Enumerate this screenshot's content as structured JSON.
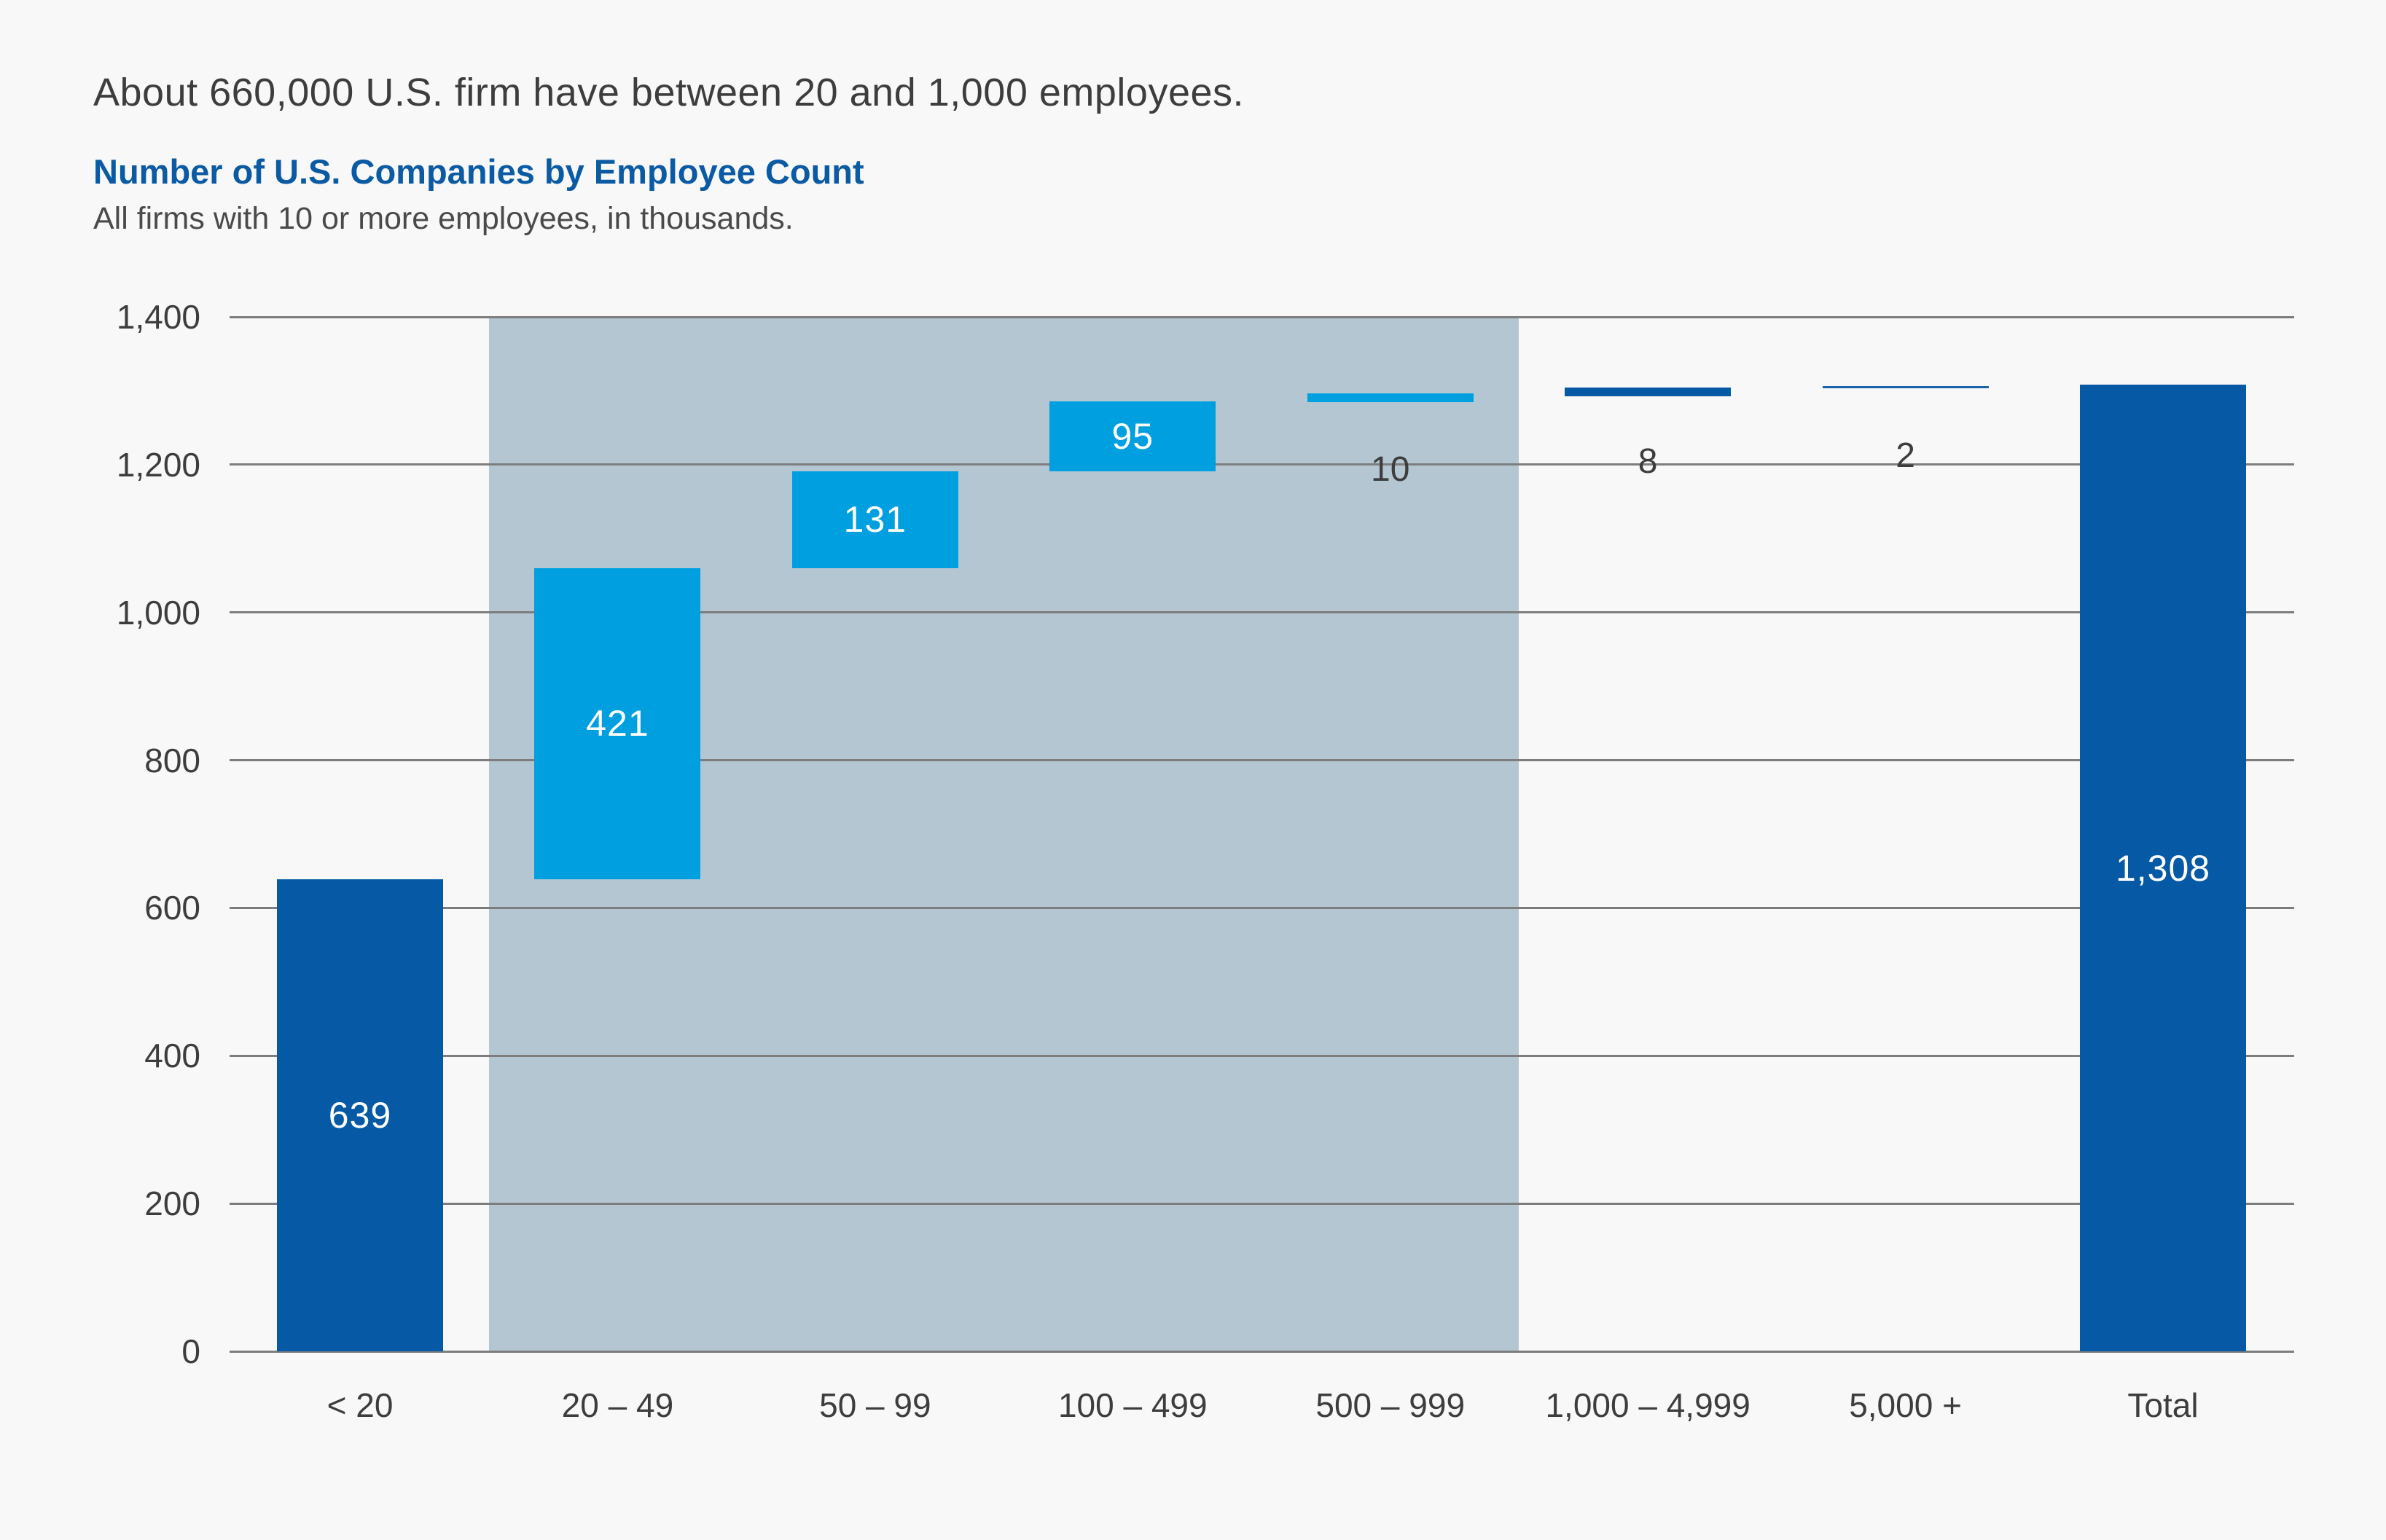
{
  "page": {
    "title": "About 660,000 U.S. firm have between 20 and 1,000 employees.",
    "chart_heading": "Number of U.S. Companies by Employee Count",
    "chart_subtitle": "All firms with 10 or more employees, in thousands."
  },
  "colors": {
    "background": "#f8f8f8",
    "dark_blue": "#0659a5",
    "light_blue": "#009fe0",
    "thin_bar_blue": "#1b64ab",
    "band": "#b4c6d2",
    "grid": "#7d7d7d",
    "text_dark": "#3d3d3d",
    "text_gray": "#4a4a4a",
    "heading_blue": "#0b5aa4",
    "bar_label_white": "#ffffff"
  },
  "chart_data": {
    "type": "bar",
    "variant": "waterfall",
    "title": "Number of U.S. Companies by Employee Count",
    "subtitle": "All firms with 10 or more employees, in thousands.",
    "headline": "About 660,000 U.S. firm have between 20 and 1,000 employees.",
    "categories": [
      "< 20",
      "20 – 49",
      "50 – 99",
      "100 – 499",
      "500 – 999",
      "1,000 – 4,999",
      "5,000 +",
      "Total"
    ],
    "values": [
      639,
      421,
      131,
      95,
      10,
      8,
      2,
      1308
    ],
    "value_labels": [
      "639",
      "421",
      "131",
      "95",
      "10",
      "8",
      "2",
      "1,308"
    ],
    "cumulative_start": [
      0,
      639,
      1060,
      1191,
      1286,
      1296,
      1304,
      0
    ],
    "cumulative_end": [
      639,
      1060,
      1191,
      1286,
      1296,
      1304,
      1306,
      1308
    ],
    "bar_colors": [
      "#0659a5",
      "#009fe0",
      "#009fe0",
      "#009fe0",
      "#009fe0",
      "#0659a5",
      "#1b64ab",
      "#0659a5"
    ],
    "label_placement": [
      "inside",
      "inside",
      "inside",
      "inside",
      "below",
      "below",
      "below",
      "inside"
    ],
    "label_colors": [
      "#ffffff",
      "#ffffff",
      "#ffffff",
      "#ffffff",
      "#3d3d3d",
      "#3d3d3d",
      "#3d3d3d",
      "#ffffff"
    ],
    "y_ticks": [
      "0",
      "200",
      "400",
      "600",
      "800",
      "1,000",
      "1,200",
      "1,400"
    ],
    "y_tick_values": [
      0,
      200,
      400,
      600,
      800,
      1000,
      1200,
      1400
    ],
    "ylim": [
      0,
      1400
    ],
    "grid": true,
    "legend": false,
    "highlight_band": {
      "from_category_index": 1,
      "to_category_index": 4,
      "color": "#b4c6d2"
    }
  }
}
